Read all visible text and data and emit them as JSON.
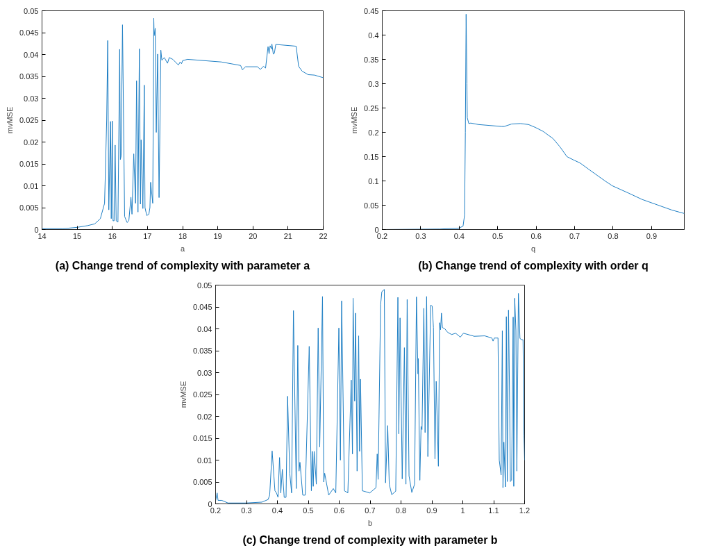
{
  "chart_data": [
    {
      "type": "line",
      "title": "(a) Change trend of complexity with parameter a",
      "xlabel": "a",
      "ylabel": "mvMSE",
      "color": "#1f7fc4",
      "grid": false,
      "xlim": [
        14,
        22
      ],
      "ylim": [
        0,
        0.05
      ],
      "xticks": [
        14,
        15,
        16,
        17,
        18,
        19,
        20,
        21,
        22
      ],
      "yticks": [
        0,
        0.005,
        0.01,
        0.015,
        0.02,
        0.025,
        0.03,
        0.035,
        0.04,
        0.045,
        0.05
      ],
      "x": [
        14,
        14.6,
        15,
        15.3,
        15.5,
        15.66,
        15.78,
        15.84,
        15.87,
        15.9,
        15.95,
        15.97,
        16.0,
        16.02,
        16.05,
        16.08,
        16.11,
        16.16,
        16.21,
        16.23,
        16.25,
        16.29,
        16.35,
        16.42,
        16.47,
        16.53,
        16.56,
        16.61,
        16.66,
        16.69,
        16.73,
        16.77,
        16.8,
        16.82,
        16.87,
        16.91,
        16.93,
        16.98,
        17.04,
        17.07,
        17.09,
        17.15,
        17.18,
        17.19,
        17.22,
        17.25,
        17.29,
        17.33,
        17.38,
        17.41,
        17.48,
        17.57,
        17.62,
        17.72,
        17.88,
        17.93,
        17.97,
        18.0,
        18.14,
        19.1,
        19.65,
        19.7,
        19.79,
        20.13,
        20.21,
        20.3,
        20.36,
        20.43,
        20.46,
        20.49,
        20.53,
        20.54,
        20.58,
        20.61,
        20.65,
        21.23,
        21.3,
        21.4,
        21.57,
        21.75,
        22
      ],
      "values": [
        0.0002,
        0.0002,
        0.0005,
        0.0009,
        0.0013,
        0.0025,
        0.006,
        0.025,
        0.0432,
        0.0045,
        0.0247,
        0.0025,
        0.0248,
        0.002,
        0.002,
        0.0193,
        0.002,
        0.0017,
        0.0412,
        0.016,
        0.0168,
        0.0468,
        0.003,
        0.0016,
        0.002,
        0.0074,
        0.0035,
        0.0173,
        0.006,
        0.034,
        0.004,
        0.0413,
        0.0058,
        0.0205,
        0.0048,
        0.033,
        0.005,
        0.0032,
        0.0035,
        0.005,
        0.0108,
        0.006,
        0.0483,
        0.0443,
        0.046,
        0.0222,
        0.0401,
        0.0073,
        0.041,
        0.0387,
        0.0393,
        0.038,
        0.0393,
        0.0389,
        0.0376,
        0.0383,
        0.0379,
        0.0386,
        0.0389,
        0.0383,
        0.0375,
        0.0365,
        0.0372,
        0.0372,
        0.0366,
        0.0373,
        0.0369,
        0.0418,
        0.0402,
        0.042,
        0.0413,
        0.0424,
        0.0401,
        0.0403,
        0.0423,
        0.0419,
        0.0373,
        0.0362,
        0.0354,
        0.0353,
        0.0347
      ]
    },
    {
      "type": "line",
      "title": "(b) Change trend of complexity with order q",
      "xlabel": "q",
      "ylabel": "mvMSE",
      "color": "#1f7fc4",
      "grid": false,
      "xlim": [
        0.2,
        0.985
      ],
      "ylim": [
        0,
        0.45
      ],
      "xticks": [
        0.2,
        0.3,
        0.4,
        0.5,
        0.6,
        0.7,
        0.8,
        0.9
      ],
      "yticks": [
        0,
        0.05,
        0.1,
        0.15,
        0.2,
        0.25,
        0.3,
        0.35,
        0.4,
        0.45
      ],
      "x": [
        0.2,
        0.35,
        0.4,
        0.41,
        0.414,
        0.416,
        0.418,
        0.42,
        0.421,
        0.425,
        0.43,
        0.45,
        0.51,
        0.517,
        0.536,
        0.559,
        0.58,
        0.598,
        0.618,
        0.644,
        0.662,
        0.68,
        0.7,
        0.714,
        0.74,
        0.779,
        0.798,
        0.84,
        0.875,
        0.914,
        0.953,
        0.985
      ],
      "values": [
        0,
        0.001,
        0.003,
        0.007,
        0.03,
        0.2,
        0.443,
        0.3,
        0.23,
        0.218,
        0.219,
        0.216,
        0.212,
        0.212,
        0.217,
        0.218,
        0.216,
        0.21,
        0.202,
        0.187,
        0.17,
        0.15,
        0.142,
        0.137,
        0.122,
        0.1,
        0.09,
        0.075,
        0.062,
        0.051,
        0.04,
        0.033
      ]
    },
    {
      "type": "line",
      "title": "(c) Change trend of complexity with parameter b",
      "xlabel": "b",
      "ylabel": "mvMSE",
      "color": "#1f7fc4",
      "grid": false,
      "xlim": [
        0.2,
        1.2
      ],
      "ylim": [
        0,
        0.05
      ],
      "xticks": [
        0.2,
        0.3,
        0.4,
        0.5,
        0.6,
        0.7,
        0.8,
        0.9,
        1,
        1.1,
        1.2
      ],
      "yticks": [
        0,
        0.005,
        0.01,
        0.015,
        0.02,
        0.025,
        0.03,
        0.035,
        0.04,
        0.045,
        0.05
      ],
      "x": [
        0.2,
        0.205,
        0.208,
        0.22,
        0.24,
        0.3,
        0.35,
        0.37,
        0.375,
        0.383,
        0.392,
        0.397,
        0.402,
        0.407,
        0.411,
        0.416,
        0.422,
        0.428,
        0.433,
        0.44,
        0.446,
        0.452,
        0.461,
        0.466,
        0.47,
        0.473,
        0.482,
        0.49,
        0.503,
        0.51,
        0.513,
        0.516,
        0.519,
        0.526,
        0.532,
        0.537,
        0.546,
        0.55,
        0.553,
        0.566,
        0.581,
        0.589,
        0.599,
        0.604,
        0.608,
        0.617,
        0.628,
        0.639,
        0.643,
        0.645,
        0.65,
        0.653,
        0.658,
        0.663,
        0.666,
        0.669,
        0.675,
        0.699,
        0.719,
        0.723,
        0.726,
        0.734,
        0.738,
        0.746,
        0.75,
        0.757,
        0.762,
        0.77,
        0.783,
        0.79,
        0.793,
        0.797,
        0.804,
        0.811,
        0.816,
        0.82,
        0.826,
        0.835,
        0.844,
        0.85,
        0.855,
        0.856,
        0.861,
        0.865,
        0.868,
        0.874,
        0.878,
        0.883,
        0.887,
        0.896,
        0.901,
        0.905,
        0.91,
        0.914,
        0.921,
        0.925,
        0.928,
        0.931,
        0.934,
        0.942,
        0.951,
        0.964,
        0.977,
        0.992,
        1.002,
        1.037,
        1.071,
        1.094,
        1.098,
        1.102,
        1.114,
        1.118,
        1.124,
        1.128,
        1.13,
        1.133,
        1.138,
        1.141,
        1.144,
        1.148,
        1.152,
        1.154,
        1.158,
        1.163,
        1.165,
        1.168,
        1.172,
        1.175,
        1.18,
        1.185,
        1.191,
        1.195,
        1.198,
        1.2
      ],
      "values": [
        0.0007,
        0.0025,
        0.0008,
        0.0008,
        0.0002,
        0.0002,
        0.0004,
        0.001,
        0.002,
        0.0121,
        0.003,
        0.0025,
        0.0015,
        0.0106,
        0.0025,
        0.0079,
        0.0015,
        0.0015,
        0.0246,
        0.007,
        0.0025,
        0.0442,
        0.0035,
        0.0362,
        0.0075,
        0.0095,
        0.002,
        0.002,
        0.036,
        0.003,
        0.012,
        0.004,
        0.012,
        0.0045,
        0.0402,
        0.013,
        0.0474,
        0.005,
        0.007,
        0.002,
        0.0035,
        0.0025,
        0.0402,
        0.01,
        0.0464,
        0.003,
        0.0025,
        0.0283,
        0.0114,
        0.047,
        0.0235,
        0.0436,
        0.0075,
        0.0384,
        0.012,
        0.0285,
        0.003,
        0.0025,
        0.0037,
        0.0114,
        0.0056,
        0.0455,
        0.0485,
        0.049,
        0.0048,
        0.0179,
        0.0045,
        0.0021,
        0.0029,
        0.0472,
        0.016,
        0.0425,
        0.0057,
        0.0357,
        0.0045,
        0.0467,
        0.0064,
        0.0026,
        0.0045,
        0.0473,
        0.0297,
        0.0332,
        0.0054,
        0.0177,
        0.017,
        0.0447,
        0.0163,
        0.0474,
        0.0108,
        0.0454,
        0.0452,
        0.0403,
        0.0103,
        0.028,
        0.0086,
        0.0414,
        0.0398,
        0.0436,
        0.0403,
        0.04,
        0.0392,
        0.0387,
        0.039,
        0.0381,
        0.039,
        0.0383,
        0.0384,
        0.0379,
        0.0372,
        0.0379,
        0.0379,
        0.01,
        0.0066,
        0.0396,
        0.0037,
        0.0141,
        0.0039,
        0.0428,
        0.0051,
        0.0443,
        0.0207,
        0.0051,
        0.0054,
        0.0427,
        0.004,
        0.047,
        0.0396,
        0.0075,
        0.0481,
        0.0378,
        0.0375,
        0.0375,
        0.0155,
        0.01
      ]
    }
  ]
}
